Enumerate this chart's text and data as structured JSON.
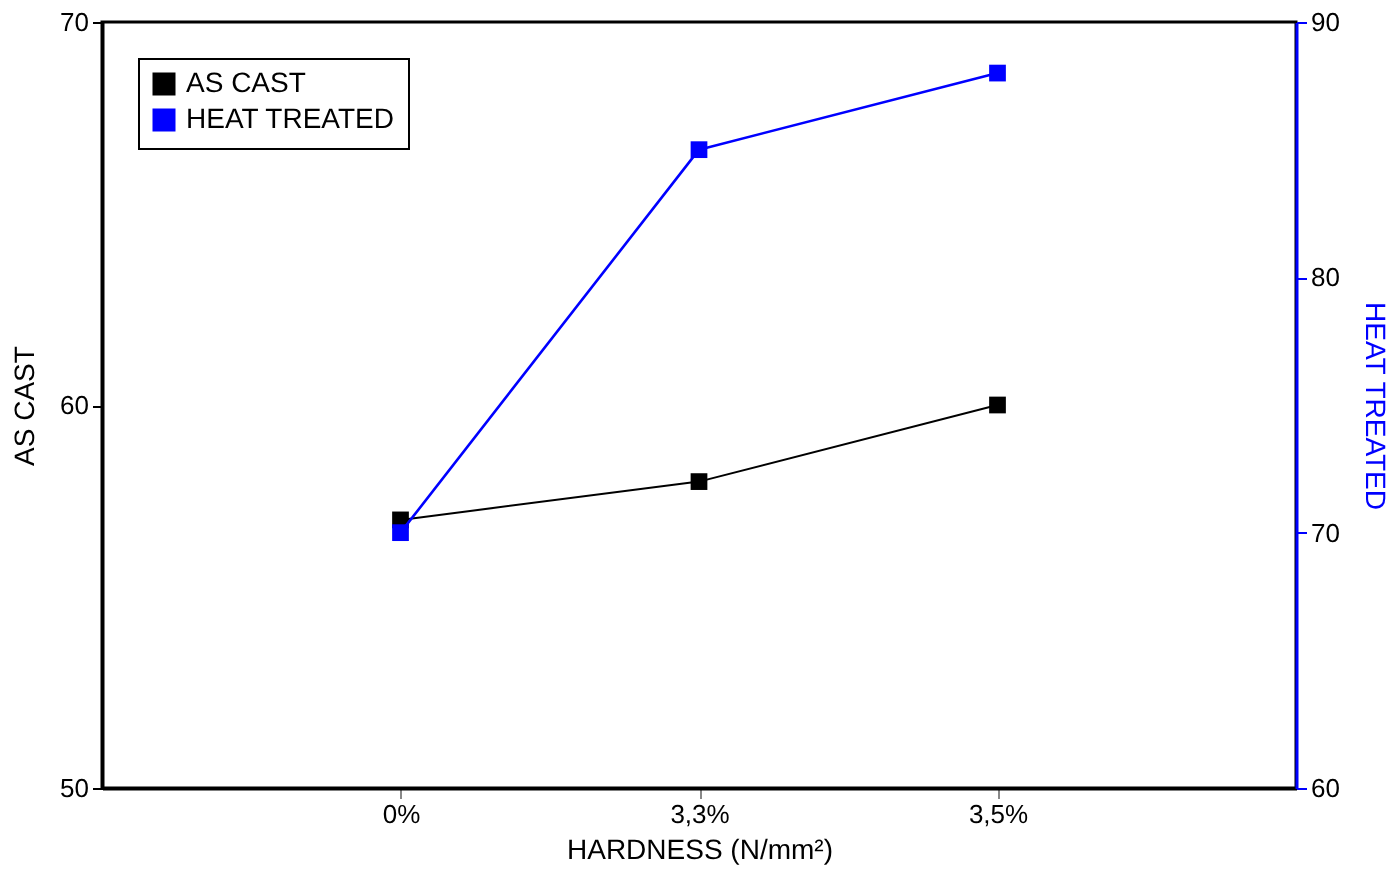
{
  "chart_data": {
    "type": "line",
    "xlabel": "HARDNESS (N/mm²)",
    "ylabel": "AS CAST",
    "y2label": "HEAT TREATED",
    "categories": [
      "0%",
      "3,3%",
      "3,5%"
    ],
    "series": [
      {
        "name": "AS CAST",
        "color": "#000000",
        "values": [
          57,
          58,
          60
        ]
      },
      {
        "name": "HEAT TREATED",
        "color": "#0000ff",
        "values": [
          70,
          85,
          88
        ],
        "axis": "y2"
      }
    ],
    "ylim": [
      50,
      70
    ],
    "yticks": [
      50,
      60,
      70
    ],
    "y2lim": [
      60,
      90
    ],
    "y2ticks": [
      60,
      70,
      80,
      90
    ],
    "marker": "square",
    "line_style": "solid",
    "grid": false,
    "legend": "top left"
  }
}
